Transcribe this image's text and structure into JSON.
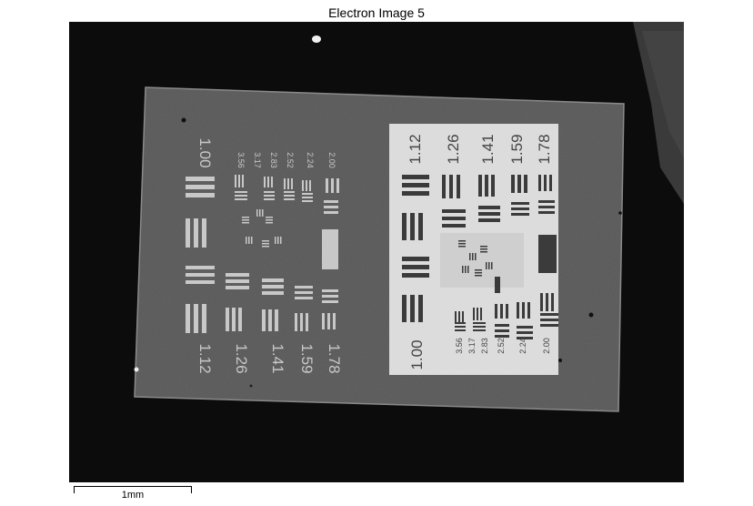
{
  "title": "Electron Image 5",
  "scale_bar": {
    "label": "1mm"
  },
  "colors": {
    "background": "#0c0c0c",
    "sample": "#575757",
    "panel": "#d9d9d9",
    "left_bars": "#c8c8c8",
    "right_bars": "#3b3b3b"
  },
  "left_labels": [
    "1.00",
    "1.12",
    "1.26",
    "1.41",
    "1.59",
    "1.78",
    "3.56",
    "3.17",
    "2.83",
    "2.52",
    "2.24",
    "2.00"
  ],
  "right_labels": [
    "1.12",
    "1.26",
    "1.41",
    "1.59",
    "1.78",
    "1.00",
    "3.56",
    "3.17",
    "2.83",
    "2.52",
    "2.24",
    "2.00"
  ]
}
